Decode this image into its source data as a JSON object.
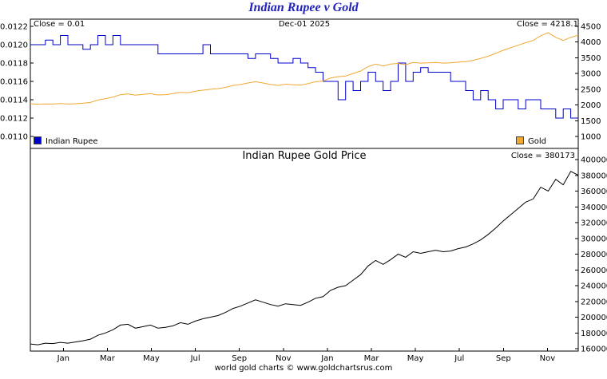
{
  "footer": {
    "text": "world gold charts © www.goldchartsrus.com"
  },
  "chart_data": [
    {
      "type": "line",
      "title": "Indian Rupee v Gold",
      "annotations": {
        "close_left": "Close = 0.01",
        "date": "Dec-01  2025",
        "close_right": "Close = 4218.1"
      },
      "legend": [
        {
          "label": "Indian Rupee",
          "color": "#0000cc"
        },
        {
          "label": "Gold",
          "color": "#f0a832"
        }
      ],
      "left_axis": {
        "tick_labels": [
          "0.0122",
          "0.0120",
          "0.0118",
          "0.0116",
          "0.0114",
          "0.0112",
          "0.0110"
        ],
        "ylim": [
          0.011,
          0.0122
        ]
      },
      "right_axis": {
        "tick_labels": [
          "4500",
          "4000",
          "3500",
          "3000",
          "2500",
          "2000",
          "1500",
          "1000"
        ],
        "ylim": [
          1000,
          4500
        ]
      },
      "series": [
        {
          "name": "Indian Rupee",
          "axis": "left",
          "color": "#0000cc",
          "interpolation": "step",
          "values": [
            0.012,
            0.012,
            0.01205,
            0.012,
            0.0121,
            0.012,
            0.012,
            0.01195,
            0.012,
            0.0121,
            0.012,
            0.0121,
            0.012,
            0.012,
            0.012,
            0.012,
            0.012,
            0.0119,
            0.0119,
            0.0119,
            0.0119,
            0.0119,
            0.0119,
            0.012,
            0.0119,
            0.0119,
            0.0119,
            0.0119,
            0.0119,
            0.01185,
            0.0119,
            0.0119,
            0.01185,
            0.0118,
            0.0118,
            0.01185,
            0.0118,
            0.01175,
            0.0117,
            0.0116,
            0.0116,
            0.0114,
            0.0116,
            0.0115,
            0.0116,
            0.0117,
            0.0116,
            0.0115,
            0.0116,
            0.0118,
            0.0116,
            0.0117,
            0.01175,
            0.0117,
            0.0117,
            0.0117,
            0.0116,
            0.0116,
            0.0115,
            0.0114,
            0.0115,
            0.0114,
            0.0113,
            0.0114,
            0.0114,
            0.0113,
            0.0114,
            0.0114,
            0.0113,
            0.0113,
            0.0112,
            0.0113,
            0.0112,
            0.0112
          ]
        },
        {
          "name": "Gold",
          "axis": "right",
          "color": "#f0a832",
          "interpolation": "linear",
          "values": [
            2040,
            2025,
            2035,
            2030,
            2045,
            2030,
            2040,
            2055,
            2080,
            2160,
            2200,
            2250,
            2330,
            2350,
            2310,
            2340,
            2360,
            2320,
            2330,
            2360,
            2400,
            2390,
            2440,
            2470,
            2500,
            2520,
            2560,
            2620,
            2650,
            2700,
            2740,
            2700,
            2650,
            2620,
            2660,
            2640,
            2630,
            2680,
            2740,
            2760,
            2860,
            2900,
            2920,
            3000,
            3080,
            3220,
            3300,
            3240,
            3300,
            3320,
            3280,
            3350,
            3330,
            3340,
            3350,
            3330,
            3340,
            3360,
            3380,
            3420,
            3480,
            3550,
            3640,
            3740,
            3820,
            3900,
            3980,
            4050,
            4200,
            4300,
            4150,
            4050,
            4150,
            4218.1
          ]
        }
      ]
    },
    {
      "type": "line",
      "title": "Indian Rupee Gold Price",
      "annotations": {
        "close_right": "Close = 380173"
      },
      "right_axis": {
        "tick_labels": [
          "400000",
          "380000",
          "360000",
          "340000",
          "320000",
          "300000",
          "280000",
          "260000",
          "240000",
          "220000",
          "200000",
          "180000",
          "160000"
        ],
        "ylim": [
          160000,
          400000
        ]
      },
      "x_axis": {
        "tick_labels": [
          "Jan",
          "Mar",
          "May",
          "Jul",
          "Sep",
          "Nov",
          "Jan",
          "Mar",
          "May",
          "Jul",
          "Sep",
          "Nov"
        ],
        "tick_positions_months": [
          1,
          3,
          5,
          7,
          9,
          11,
          13,
          15,
          17,
          19,
          21,
          23
        ],
        "range_months": [
          -0.5,
          24.4
        ]
      },
      "series": [
        {
          "name": "Indian Rupee Gold Price",
          "axis": "right",
          "color": "#000000",
          "interpolation": "linear",
          "values": [
            166000,
            165000,
            167000,
            166500,
            168000,
            167000,
            168500,
            170000,
            172000,
            177000,
            180000,
            184000,
            190000,
            191000,
            186000,
            188000,
            190000,
            186000,
            187000,
            189000,
            193000,
            191000,
            195000,
            198000,
            200000,
            202000,
            206000,
            211000,
            214000,
            218000,
            222000,
            219000,
            216000,
            214000,
            217000,
            216000,
            215000,
            219000,
            224000,
            226000,
            234000,
            238000,
            240000,
            247000,
            254000,
            265000,
            272000,
            267000,
            273000,
            280000,
            276000,
            283000,
            281000,
            283000,
            285000,
            283000,
            284000,
            287000,
            289000,
            293000,
            298000,
            305000,
            313000,
            322000,
            330000,
            338000,
            346000,
            350000,
            365000,
            360000,
            375000,
            368000,
            385000,
            380173
          ]
        }
      ]
    }
  ]
}
